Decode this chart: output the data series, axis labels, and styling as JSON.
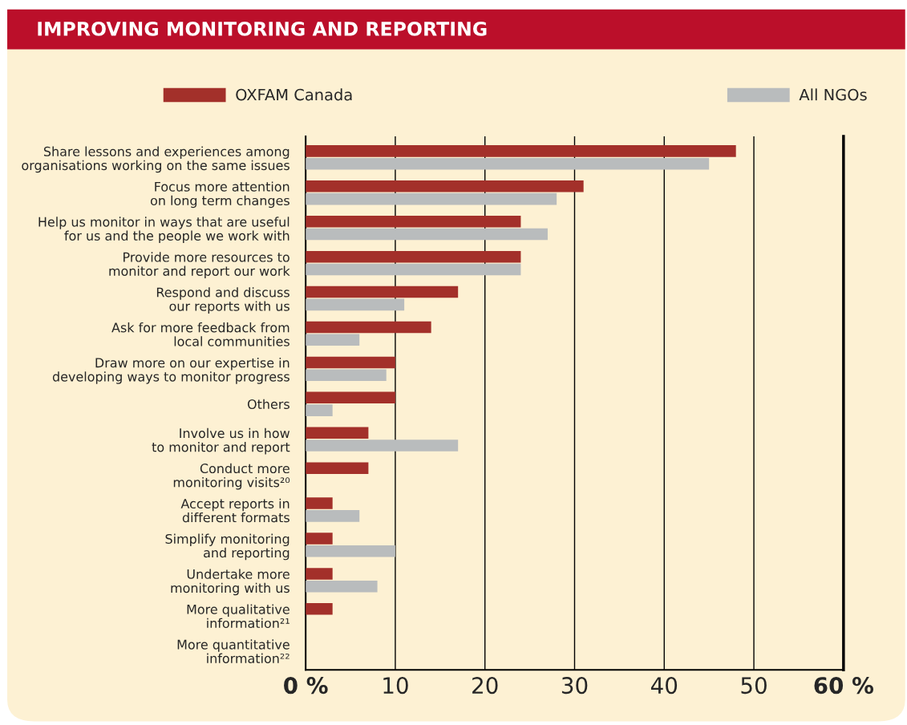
{
  "chart_data": {
    "type": "bar",
    "orientation": "horizontal",
    "title": "IMPROVING MONITORING AND REPORTING",
    "categories": [
      "Share lessons and experiences among\norganisations working on the same issues",
      "Focus more attention\non long term changes",
      "Help us monitor in ways that are useful\nfor us and the people we work with",
      "Provide more resources to\nmonitor and report our work",
      "Respond and discuss\nour reports with us",
      "Ask for more feedback from\nlocal communities",
      "Draw more on our expertise in\ndeveloping ways to monitor progress",
      "Others",
      "Involve us in how\nto monitor and report",
      "Conduct more\nmonitoring visits²⁰",
      "Accept reports in\ndifferent formats",
      "Simplify monitoring\nand reporting",
      "Undertake more\nmonitoring with us",
      "More qualitative\ninformation²¹",
      "More quantitative\ninformation²²"
    ],
    "series": [
      {
        "name": "OXFAM Canada",
        "color": "#a3302a",
        "values": [
          48,
          31,
          24,
          24,
          17,
          14,
          10,
          10,
          7,
          7,
          3,
          3,
          3,
          3,
          null
        ]
      },
      {
        "name": "All NGOs",
        "color": "#b9bcbd",
        "values": [
          45,
          28,
          27,
          24,
          11,
          6,
          9,
          3,
          17,
          null,
          6,
          10,
          8,
          null,
          null
        ]
      }
    ],
    "xlim": [
      0,
      60
    ],
    "xticks": [
      {
        "value": 0,
        "label": "0 %"
      },
      10,
      20,
      30,
      40,
      50,
      {
        "value": 60,
        "label": "60 %"
      }
    ],
    "grid": "x",
    "legend": "top"
  }
}
